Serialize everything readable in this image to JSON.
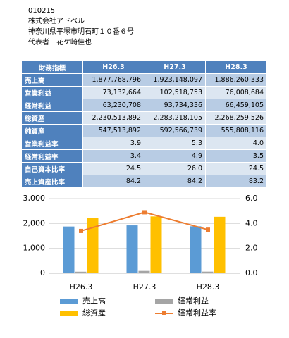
{
  "header": {
    "code": "010215",
    "company": "株式会社アドベル",
    "address": "神奈川県平塚市明石町１０番６号",
    "representative": "代表者　花ケ崎佳也"
  },
  "table": {
    "header": [
      "財務指標",
      "H26.3",
      "H27.3",
      "H28.3"
    ],
    "rows": [
      [
        "売上高",
        "1,877,768,796",
        "1,923,148,097",
        "1,886,260,333"
      ],
      [
        "営業利益",
        "73,132,664",
        "102,518,753",
        "76,008,684"
      ],
      [
        "経常利益",
        "63,230,708",
        "93,734,336",
        "66,459,105"
      ],
      [
        "総資産",
        "2,230,513,892",
        "2,283,218,105",
        "2,268,259,526"
      ],
      [
        "純資産",
        "547,513,892",
        "592,566,739",
        "555,808,116"
      ],
      [
        "営業利益率",
        "3.9",
        "5.3",
        "4.0"
      ],
      [
        "経常利益率",
        "3.4",
        "4.9",
        "3.5"
      ],
      [
        "自己資本比率",
        "24.5",
        "26.0",
        "24.5"
      ],
      [
        "売上資産比率",
        "84.2",
        "84.2",
        "83.2"
      ]
    ]
  },
  "chart_data": {
    "type": "bar-line",
    "categories": [
      "H26.3",
      "H27.3",
      "H28.3"
    ],
    "series": [
      {
        "name": "売上高",
        "color": "#5b9bd5",
        "type": "bar",
        "values": [
          1878,
          1923,
          1886
        ]
      },
      {
        "name": "経常利益",
        "color": "#a5a5a5",
        "type": "bar",
        "values": [
          63,
          94,
          66
        ]
      },
      {
        "name": "総資産",
        "color": "#ffc000",
        "type": "bar",
        "values": [
          2231,
          2283,
          2268
        ]
      },
      {
        "name": "経常利益率",
        "color": "#ed7d31",
        "type": "line",
        "axis": "y2",
        "values": [
          3.4,
          4.9,
          3.5
        ]
      }
    ],
    "ylim": [
      0,
      3000
    ],
    "yticks": [
      0,
      {
        "value": 1000,
        "label": "1,000"
      },
      {
        "value": 2000,
        "label": "2,000"
      },
      {
        "value": 3000,
        "label": "3,000"
      }
    ],
    "y2lim": [
      0,
      6
    ],
    "y2ticks": [
      {
        "value": 0,
        "label": "0.0"
      },
      {
        "value": 2,
        "label": "2.0"
      },
      {
        "value": 4,
        "label": "4.0"
      },
      {
        "value": 6,
        "label": "6.0"
      }
    ],
    "grid": true
  }
}
